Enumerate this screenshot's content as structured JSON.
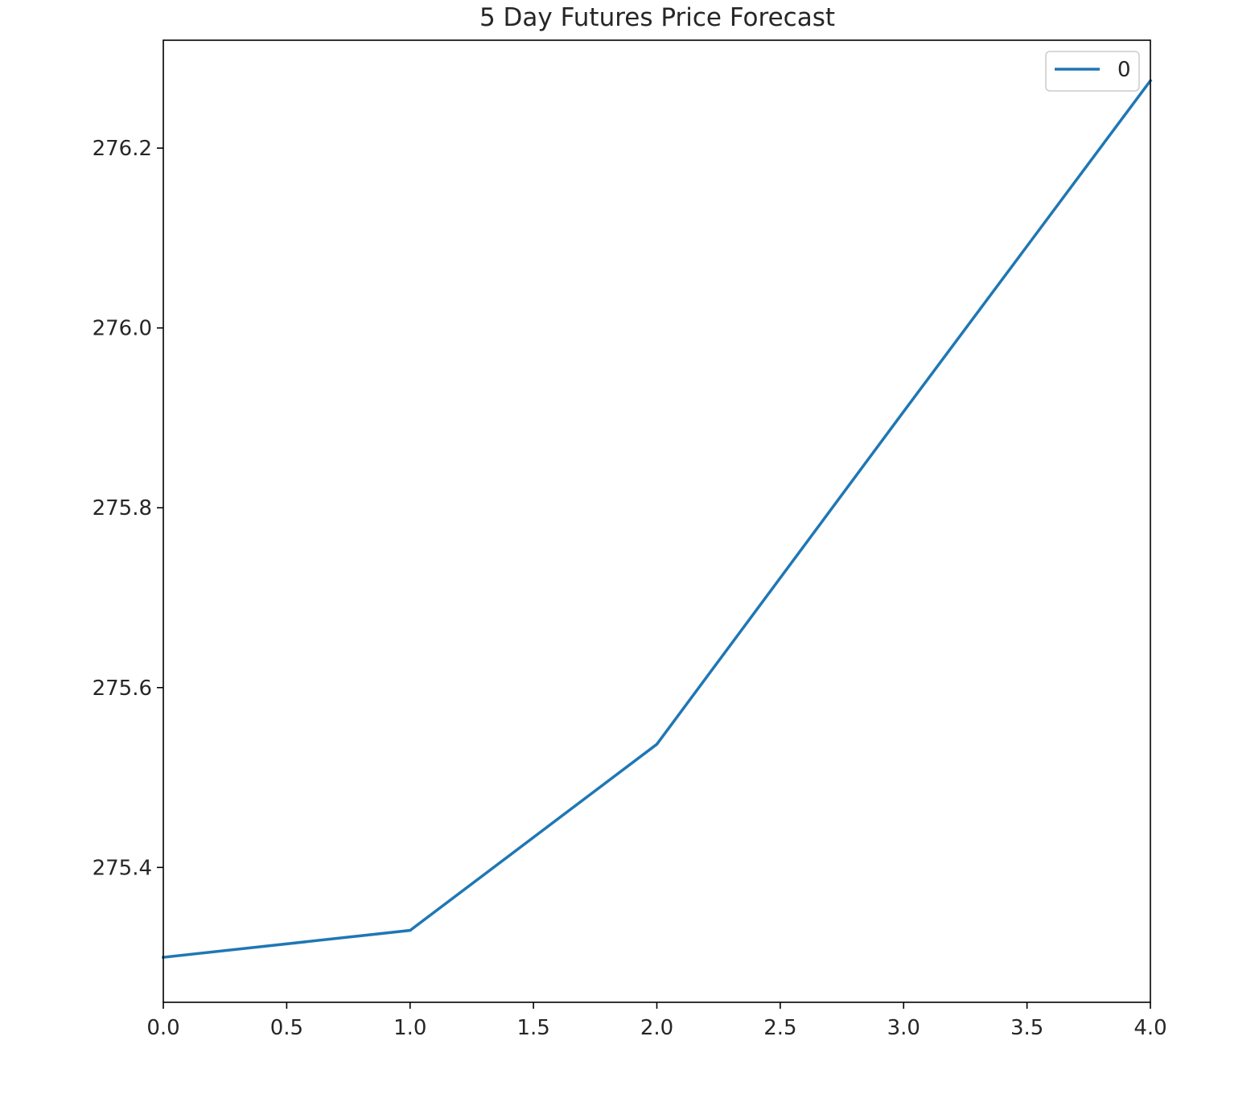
{
  "chart_data": {
    "type": "line",
    "title": "5 Day Futures Price Forecast",
    "xlabel": "",
    "ylabel": "",
    "x": [
      0,
      1,
      2,
      3,
      4
    ],
    "series": [
      {
        "name": "0",
        "values": [
          275.3,
          275.33,
          275.537,
          275.907,
          276.275
        ],
        "color": "#1f77b4"
      }
    ],
    "xlim": [
      0,
      4
    ],
    "ylim": [
      275.25,
      276.32
    ],
    "xticks": [
      0.0,
      0.5,
      1.0,
      1.5,
      2.0,
      2.5,
      3.0,
      3.5,
      4.0
    ],
    "xtick_labels": [
      "0.0",
      "0.5",
      "1.0",
      "1.5",
      "2.0",
      "2.5",
      "3.0",
      "3.5",
      "4.0"
    ],
    "yticks": [
      275.4,
      275.6,
      275.8,
      276.0,
      276.2
    ],
    "ytick_labels": [
      "275.4",
      "275.6",
      "275.8",
      "276.0",
      "276.2"
    ],
    "grid": false,
    "legend_position": "top-right"
  }
}
